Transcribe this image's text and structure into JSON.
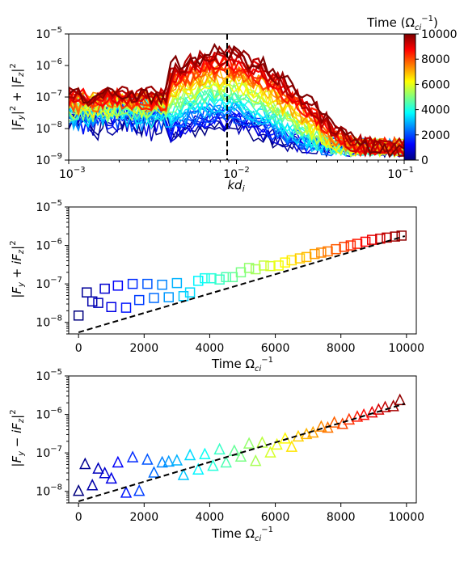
{
  "chart_data": [
    {
      "type": "line",
      "panel": "spectrum",
      "xscale": "log",
      "yscale": "log",
      "xlim": [
        0.001,
        0.1
      ],
      "ylim": [
        1e-09,
        1e-05
      ],
      "xlabel": "kd_i",
      "ylabel": "|F_y|^2 + |F_z|^2",
      "xticks": [
        {
          "v": 0.001,
          "b": "10",
          "e": "−3"
        },
        {
          "v": 0.01,
          "b": "10",
          "e": "−2"
        },
        {
          "v": 0.1,
          "b": "10",
          "e": "−1"
        }
      ],
      "yticks": [
        {
          "v": 1e-09,
          "b": "10",
          "e": "−9"
        },
        {
          "v": 1e-08,
          "b": "10",
          "e": "−8"
        },
        {
          "v": 1e-07,
          "b": "10",
          "e": "−7"
        },
        {
          "v": 1e-06,
          "b": "10",
          "e": "−6"
        },
        {
          "v": 1e-05,
          "b": "10",
          "e": "−5"
        }
      ],
      "vline_x": 0.0088,
      "series_count": 40,
      "series_times": [
        0,
        10000
      ],
      "colormap": "jet",
      "colorbar": {
        "label": "Time (Ω_ci^−1)",
        "ticks": [
          "0",
          "2000",
          "4000",
          "6000",
          "8000",
          "10000"
        ],
        "range": [
          0,
          10000
        ],
        "colors": [
          "#00007f",
          "#0000ff",
          "#007fff",
          "#00ffff",
          "#7fff7f",
          "#ffff00",
          "#ff7f00",
          "#ff0000",
          "#7f0000"
        ]
      }
    },
    {
      "type": "scatter",
      "panel": "plus",
      "marker": "square",
      "yscale": "log",
      "xlim": [
        -300,
        10300
      ],
      "ylim": [
        5e-09,
        1e-05
      ],
      "xlabel": "Time Ω_ci^−1",
      "ylabel": "|F_y + iF_z|^2",
      "xticks": [
        "0",
        "2000",
        "4000",
        "6000",
        "8000",
        "10000"
      ],
      "yticks": [
        {
          "v": 1e-08,
          "b": "10",
          "e": "−8"
        },
        {
          "v": 1e-07,
          "b": "10",
          "e": "−7"
        },
        {
          "v": 1e-06,
          "b": "10",
          "e": "−6"
        },
        {
          "v": 1e-05,
          "b": "10",
          "e": "−5"
        }
      ],
      "x": [
        0,
        250,
        420,
        600,
        800,
        1000,
        1200,
        1450,
        1650,
        1850,
        2100,
        2300,
        2550,
        2750,
        3000,
        3200,
        3400,
        3650,
        3850,
        4050,
        4300,
        4500,
        4700,
        4950,
        5200,
        5400,
        5650,
        5850,
        6100,
        6300,
        6500,
        6750,
        6950,
        7200,
        7400,
        7600,
        7850,
        8100,
        8300,
        8500,
        8750,
        8950,
        9200,
        9400,
        9650,
        9850
      ],
      "y": [
        1.5e-08,
        6e-08,
        3.5e-08,
        3.2e-08,
        7.5e-08,
        2.5e-08,
        9e-08,
        2.4e-08,
        1e-07,
        3.8e-08,
        1e-07,
        4.3e-08,
        9.5e-08,
        4.5e-08,
        1.05e-07,
        4.8e-08,
        6e-08,
        1.2e-07,
        1.4e-07,
        1.4e-07,
        1.3e-07,
        1.5e-07,
        1.5e-07,
        2e-07,
        2.6e-07,
        2.4e-07,
        3e-07,
        2.9e-07,
        3e-07,
        3.6e-07,
        4.1e-07,
        4.6e-07,
        5e-07,
        6e-07,
        6.5e-07,
        7e-07,
        8e-07,
        9.2e-07,
        1e-06,
        1.1e-06,
        1.25e-06,
        1.4e-06,
        1.5e-06,
        1.6e-06,
        1.7e-06,
        1.8e-06
      ],
      "fit": {
        "x": [
          0,
          9950
        ],
        "y": [
          5.5e-09,
          1.75e-06
        ]
      }
    },
    {
      "type": "scatter",
      "panel": "minus",
      "marker": "triangle",
      "yscale": "log",
      "xlim": [
        -300,
        10300
      ],
      "ylim": [
        5e-09,
        1e-05
      ],
      "xlabel": "Time Ω_ci^−1",
      "ylabel": "|F_y − iF_z|^2",
      "xticks": [
        "0",
        "2000",
        "4000",
        "6000",
        "8000",
        "10000"
      ],
      "yticks": [
        {
          "v": 1e-08,
          "b": "10",
          "e": "−8"
        },
        {
          "v": 1e-07,
          "b": "10",
          "e": "−7"
        },
        {
          "v": 1e-06,
          "b": "10",
          "e": "−6"
        },
        {
          "v": 1e-05,
          "b": "10",
          "e": "−5"
        }
      ],
      "x": [
        0,
        200,
        420,
        600,
        800,
        1000,
        1200,
        1450,
        1650,
        1850,
        2100,
        2300,
        2550,
        2750,
        3000,
        3200,
        3400,
        3650,
        3850,
        4100,
        4300,
        4500,
        4750,
        4950,
        5200,
        5400,
        5600,
        5850,
        6050,
        6300,
        6500,
        6700,
        6950,
        7150,
        7400,
        7600,
        7800,
        8050,
        8250,
        8500,
        8700,
        8950,
        9150,
        9350,
        9600,
        9800
      ],
      "y": [
        1e-08,
        5e-08,
        1.4e-08,
        3.8e-08,
        2.9e-08,
        2.1e-08,
        5.5e-08,
        9e-09,
        7.5e-08,
        1e-08,
        6.5e-08,
        3e-08,
        5.5e-08,
        5.8e-08,
        6.2e-08,
        2.6e-08,
        8.5e-08,
        3.6e-08,
        9e-08,
        4.5e-08,
        1.2e-07,
        5.5e-08,
        1.1e-07,
        7.8e-08,
        1.7e-07,
        6e-08,
        1.8e-07,
        1e-07,
        1.6e-07,
        2.3e-07,
        1.4e-07,
        2.6e-07,
        3e-07,
        3.3e-07,
        4.7e-07,
        4.4e-07,
        6e-07,
        5.5e-07,
        7.2e-07,
        8.5e-07,
        9.5e-07,
        1.1e-06,
        1.3e-06,
        1.5e-06,
        1.6e-06,
        2.3e-06
      ],
      "fit": {
        "x": [
          0,
          9950
        ],
        "y": [
          5.5e-09,
          1.9e-06
        ]
      }
    }
  ]
}
